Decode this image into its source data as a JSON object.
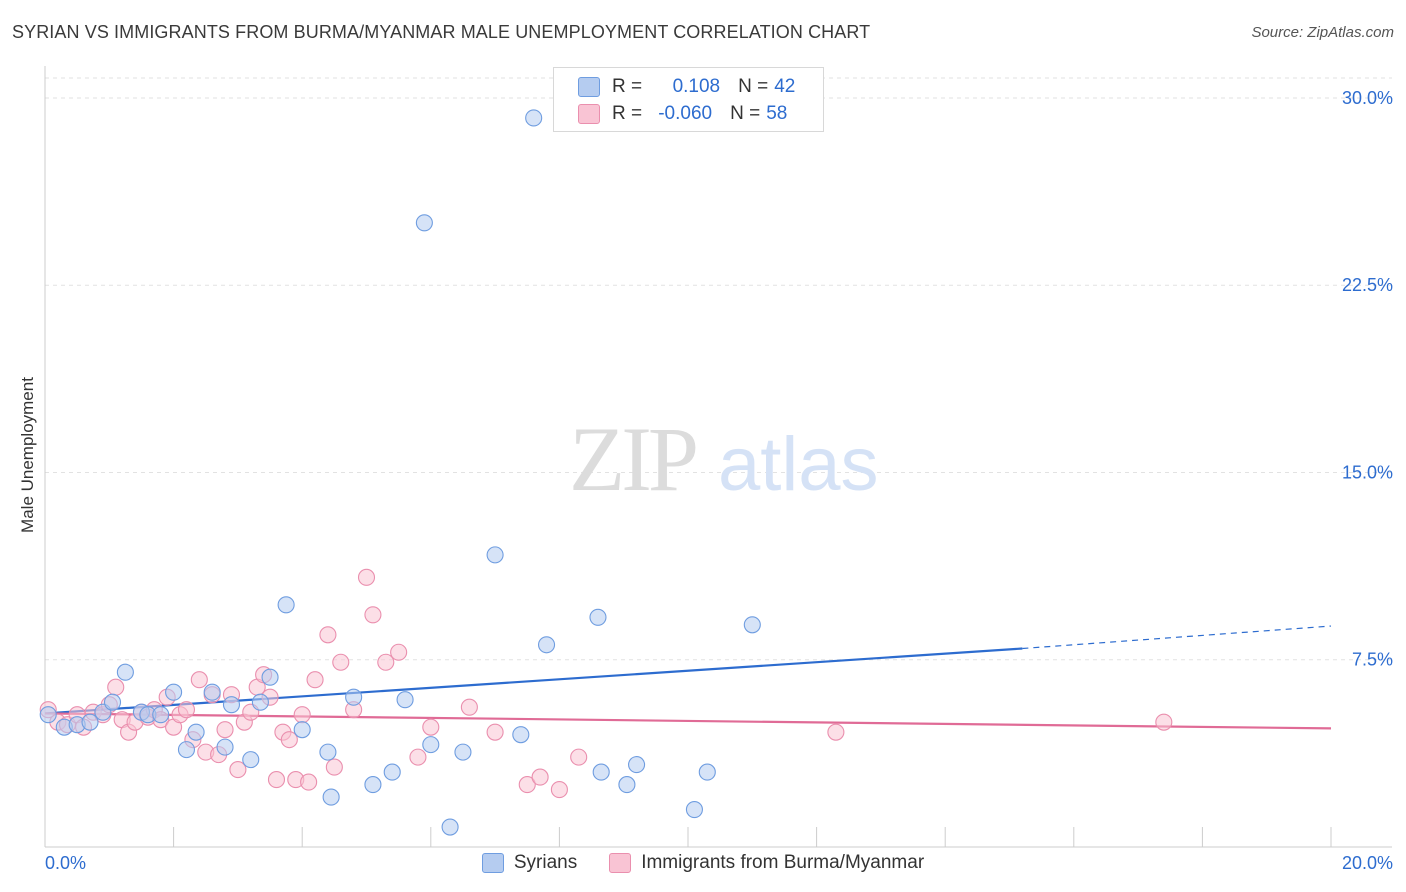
{
  "title": "SYRIAN VS IMMIGRANTS FROM BURMA/MYANMAR MALE UNEMPLOYMENT CORRELATION CHART",
  "source": "Source: ZipAtlas.com",
  "watermark": {
    "zip": "ZIP",
    "atlas": "atlas"
  },
  "legend": {
    "r_label": "R =",
    "n_label": "N =",
    "series1": {
      "r": "0.108",
      "n": "42"
    },
    "series2": {
      "r": "-0.060",
      "n": "58"
    }
  },
  "bottom_legend": {
    "series1": "Syrians",
    "series2": "Immigrants from Burma/Myanmar"
  },
  "chart_data": {
    "type": "scatter",
    "title": "SYRIAN VS IMMIGRANTS FROM BURMA/MYANMAR MALE UNEMPLOYMENT CORRELATION CHART",
    "xlabel": "",
    "ylabel": "Male Unemployment",
    "xlim": [
      0,
      20
    ],
    "ylim": [
      0,
      30.8
    ],
    "x_tick_labels": [
      "0.0%",
      "20.0%"
    ],
    "y_ticks": [
      7.5,
      15.0,
      22.5,
      30.0
    ],
    "y_tick_labels": [
      "7.5%",
      "15.0%",
      "22.5%",
      "30.0%"
    ],
    "colors": {
      "series1": "#6f9de0",
      "series1_fill": "#b5ccf0",
      "series1_line": "#2d6ccf",
      "series2": "#ea8fae",
      "series2_fill": "#f9c4d4",
      "series2_line": "#e06b96",
      "tick_label": "#2d6ccf"
    },
    "series": [
      {
        "name": "Syrians",
        "r": 0.108,
        "n": 42,
        "trend": {
          "x0": 0,
          "y0": 5.35,
          "x1": 15.2,
          "y1": 7.95,
          "dash_to_x": 20,
          "dash_to_y": 8.85
        },
        "points": [
          [
            0.05,
            5.3
          ],
          [
            0.3,
            4.8
          ],
          [
            0.5,
            4.9
          ],
          [
            0.7,
            5.0
          ],
          [
            0.9,
            5.4
          ],
          [
            1.05,
            5.8
          ],
          [
            1.25,
            7.0
          ],
          [
            1.5,
            5.4
          ],
          [
            1.6,
            5.3
          ],
          [
            1.8,
            5.3
          ],
          [
            2.0,
            6.2
          ],
          [
            2.2,
            3.9
          ],
          [
            2.35,
            4.6
          ],
          [
            2.6,
            6.2
          ],
          [
            2.8,
            4.0
          ],
          [
            2.9,
            5.7
          ],
          [
            3.2,
            3.5
          ],
          [
            3.35,
            5.8
          ],
          [
            3.5,
            6.8
          ],
          [
            3.75,
            9.7
          ],
          [
            4.0,
            4.7
          ],
          [
            4.4,
            3.8
          ],
          [
            4.45,
            2.0
          ],
          [
            4.8,
            6.0
          ],
          [
            5.1,
            2.5
          ],
          [
            5.4,
            3.0
          ],
          [
            5.6,
            5.9
          ],
          [
            5.9,
            25.0
          ],
          [
            6.0,
            4.1
          ],
          [
            6.3,
            0.8
          ],
          [
            6.5,
            3.8
          ],
          [
            7.0,
            11.7
          ],
          [
            7.4,
            4.5
          ],
          [
            7.6,
            29.2
          ],
          [
            7.8,
            8.1
          ],
          [
            8.6,
            9.2
          ],
          [
            8.65,
            3.0
          ],
          [
            9.05,
            2.5
          ],
          [
            9.2,
            3.3
          ],
          [
            10.1,
            1.5
          ],
          [
            10.3,
            3.0
          ],
          [
            11.0,
            8.9
          ]
        ]
      },
      {
        "name": "Immigrants from Burma/Myanmar",
        "r": -0.06,
        "n": 58,
        "trend": {
          "x0": 0,
          "y0": 5.35,
          "x1": 20,
          "y1": 4.75
        },
        "points": [
          [
            0.05,
            5.5
          ],
          [
            0.2,
            5.0
          ],
          [
            0.35,
            4.9
          ],
          [
            0.5,
            5.3
          ],
          [
            0.6,
            4.8
          ],
          [
            0.75,
            5.4
          ],
          [
            0.9,
            5.3
          ],
          [
            1.0,
            5.7
          ],
          [
            1.1,
            6.4
          ],
          [
            1.2,
            5.1
          ],
          [
            1.3,
            4.6
          ],
          [
            1.4,
            5.0
          ],
          [
            1.5,
            5.4
          ],
          [
            1.6,
            5.2
          ],
          [
            1.7,
            5.5
          ],
          [
            1.8,
            5.1
          ],
          [
            1.9,
            6.0
          ],
          [
            2.0,
            4.8
          ],
          [
            2.1,
            5.3
          ],
          [
            2.2,
            5.5
          ],
          [
            2.3,
            4.3
          ],
          [
            2.4,
            6.7
          ],
          [
            2.5,
            3.8
          ],
          [
            2.6,
            6.1
          ],
          [
            2.7,
            3.7
          ],
          [
            2.8,
            4.7
          ],
          [
            2.9,
            6.1
          ],
          [
            3.0,
            3.1
          ],
          [
            3.1,
            5.0
          ],
          [
            3.2,
            5.4
          ],
          [
            3.3,
            6.4
          ],
          [
            3.4,
            6.9
          ],
          [
            3.5,
            6.0
          ],
          [
            3.6,
            2.7
          ],
          [
            3.7,
            4.6
          ],
          [
            3.8,
            4.3
          ],
          [
            3.9,
            2.7
          ],
          [
            4.0,
            5.3
          ],
          [
            4.1,
            2.6
          ],
          [
            4.2,
            6.7
          ],
          [
            4.4,
            8.5
          ],
          [
            4.5,
            3.2
          ],
          [
            4.6,
            7.4
          ],
          [
            4.8,
            5.5
          ],
          [
            5.0,
            10.8
          ],
          [
            5.1,
            9.3
          ],
          [
            5.3,
            7.4
          ],
          [
            5.5,
            7.8
          ],
          [
            5.8,
            3.6
          ],
          [
            6.0,
            4.8
          ],
          [
            6.6,
            5.6
          ],
          [
            7.0,
            4.6
          ],
          [
            7.5,
            2.5
          ],
          [
            7.7,
            2.8
          ],
          [
            8.0,
            2.3
          ],
          [
            8.3,
            3.6
          ],
          [
            12.3,
            4.6
          ],
          [
            17.4,
            5.0
          ]
        ]
      }
    ]
  }
}
